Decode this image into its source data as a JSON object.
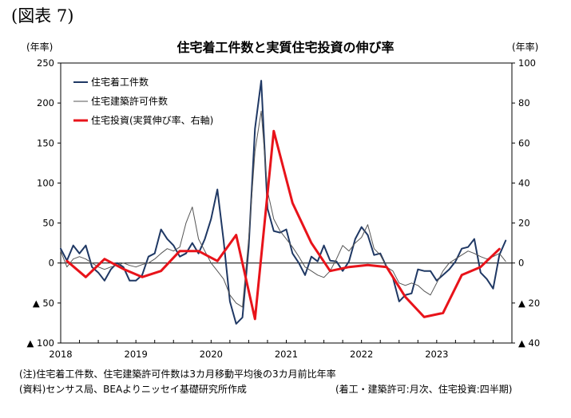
{
  "figure_label": "(図表 7)",
  "notes": {
    "note": "(注)住宅着工件数、住宅建築許可件数は3カ月移動平均後の3カ月前比年率",
    "source": "(資料)センサス局、BEAよりニッセイ基礎研究所作成",
    "frequency": "(着工・建築許可:月次、住宅投資:四半期)"
  },
  "chart_data": {
    "type": "line",
    "title": "住宅着工件数と実質住宅投資の伸び率",
    "left_axis_unit": "(年率)",
    "right_axis_unit": "(年率)",
    "ylim_left": [
      -100,
      250
    ],
    "ylim_right": [
      -40,
      100
    ],
    "yticks_left": [
      {
        "value": 250,
        "label": "250"
      },
      {
        "value": 200,
        "label": "200"
      },
      {
        "value": 150,
        "label": "150"
      },
      {
        "value": 100,
        "label": "100"
      },
      {
        "value": 50,
        "label": "50"
      },
      {
        "value": 0,
        "label": "0"
      },
      {
        "value": -50,
        "label": "▲ 50"
      },
      {
        "value": -100,
        "label": "▲ 100"
      }
    ],
    "yticks_right": [
      {
        "value": 100,
        "label": "100"
      },
      {
        "value": 80,
        "label": "80"
      },
      {
        "value": 60,
        "label": "60"
      },
      {
        "value": 40,
        "label": "40"
      },
      {
        "value": 20,
        "label": "20"
      },
      {
        "value": 0,
        "label": "0"
      },
      {
        "value": -20,
        "label": "▲ 20"
      },
      {
        "value": -40,
        "label": "▲ 40"
      }
    ],
    "x_labels": [
      "2018",
      "2019",
      "2020",
      "2021",
      "2022",
      "2023"
    ],
    "grid": false,
    "legend_position": "top-left",
    "series": [
      {
        "name": "住宅着工件数",
        "axis": "left",
        "frequency": "monthly",
        "color": "#1f3864",
        "width": 2,
        "values": [
          18,
          3,
          22,
          12,
          22,
          -5,
          -12,
          -22,
          -8,
          0,
          -5,
          -22,
          -22,
          -15,
          8,
          12,
          42,
          30,
          22,
          8,
          12,
          25,
          12,
          30,
          55,
          92,
          28,
          -48,
          -76,
          -68,
          20,
          168,
          228,
          68,
          40,
          38,
          42,
          12,
          0,
          -15,
          8,
          2,
          22,
          3,
          2,
          -10,
          2,
          30,
          45,
          35,
          10,
          12,
          -5,
          -18,
          -48,
          -40,
          -38,
          -8,
          -10,
          -10,
          -22,
          -15,
          -8,
          2,
          18,
          20,
          30,
          -12,
          -20,
          -32,
          10,
          28
        ]
      },
      {
        "name": "住宅建築許可件数",
        "axis": "left",
        "frequency": "monthly",
        "color": "#555555",
        "width": 1,
        "values": [
          15,
          -5,
          5,
          8,
          5,
          0,
          -5,
          -8,
          -5,
          -3,
          0,
          -3,
          -5,
          -2,
          0,
          5,
          12,
          18,
          15,
          20,
          50,
          70,
          30,
          15,
          0,
          -10,
          -20,
          -40,
          -50,
          -55,
          30,
          140,
          190,
          90,
          55,
          40,
          30,
          20,
          8,
          -5,
          -10,
          -15,
          -18,
          -10,
          5,
          22,
          15,
          25,
          32,
          48,
          18,
          10,
          -5,
          -10,
          -25,
          -28,
          -25,
          -28,
          -35,
          -40,
          -25,
          -10,
          0,
          5,
          10,
          15,
          12,
          8,
          5,
          8,
          12,
          2
        ]
      },
      {
        "name": "住宅投資(実質伸び率、右軸)",
        "axis": "right",
        "frequency": "quarterly",
        "color": "#e8131a",
        "width": 3,
        "values": [
          1,
          -7,
          2,
          -3,
          -7,
          -4,
          6,
          6,
          1,
          14,
          -28,
          66,
          30,
          10,
          -4,
          -2,
          -1,
          -2,
          -17,
          -27,
          -25,
          -6,
          -2,
          7
        ]
      }
    ]
  }
}
